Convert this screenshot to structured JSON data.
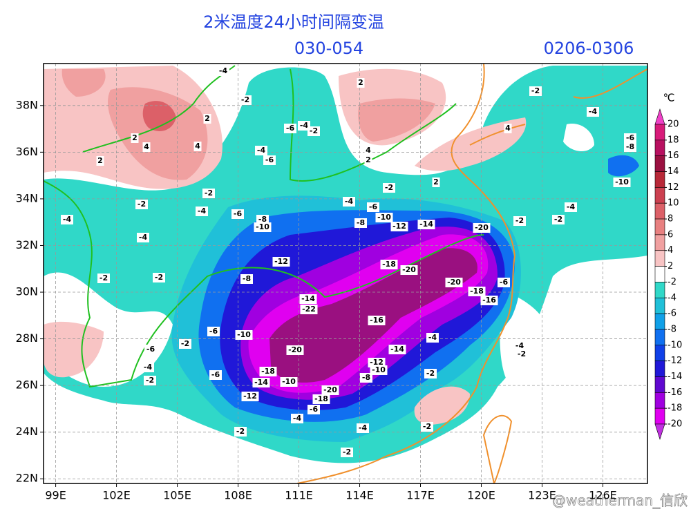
{
  "map": {
    "title": "2米温度24小时间隔变温",
    "subtitle": "030-054",
    "date_range": "0206-0306",
    "unit": "℃",
    "watermark": "@weatherman_信欣",
    "xlim": [
      98.4,
      128.2
    ],
    "ylim": [
      21.8,
      39.8
    ],
    "xticks": [
      {
        "value": 99,
        "label": "99E"
      },
      {
        "value": 102,
        "label": "102E"
      },
      {
        "value": 105,
        "label": "105E"
      },
      {
        "value": 108,
        "label": "108E"
      },
      {
        "value": 111,
        "label": "111E"
      },
      {
        "value": 114,
        "label": "114E"
      },
      {
        "value": 117,
        "label": "117E"
      },
      {
        "value": 120,
        "label": "120E"
      },
      {
        "value": 123,
        "label": "123E"
      },
      {
        "value": 126,
        "label": "126E"
      }
    ],
    "yticks": [
      {
        "value": 22,
        "label": "22N"
      },
      {
        "value": 24,
        "label": "24N"
      },
      {
        "value": 26,
        "label": "26N"
      },
      {
        "value": 28,
        "label": "28N"
      },
      {
        "value": 30,
        "label": "30N"
      },
      {
        "value": 32,
        "label": "32N"
      },
      {
        "value": 34,
        "label": "34N"
      },
      {
        "value": 36,
        "label": "36N"
      },
      {
        "value": 38,
        "label": "38N"
      }
    ],
    "grid": true,
    "colorbar": {
      "labels": [
        20,
        18,
        16,
        14,
        12,
        10,
        8,
        6,
        4,
        2,
        -2,
        -4,
        -6,
        -8,
        -10,
        -12,
        -14,
        -16,
        -18,
        -20
      ],
      "colors": [
        "#f040c8",
        "#d81b7a",
        "#b81060",
        "#9a1040",
        "#b82838",
        "#cc4050",
        "#dc6068",
        "#e88080",
        "#f0a0a0",
        "#f8c4c4",
        "#ffffff",
        "#30d8c8",
        "#20c0d8",
        "#10a0e8",
        "#1070f0",
        "#1040e8",
        "#2018d8",
        "#6008d0",
        "#a000e0",
        "#e000f0",
        "#c030e0"
      ]
    },
    "contour_labels": [
      "-4",
      "-2",
      "2",
      "-2",
      "2",
      "-6",
      "-4",
      "-2",
      "4",
      "-4",
      "2",
      "4",
      "4",
      "-6",
      "-8",
      "2",
      "-4",
      "-6",
      "4",
      "2",
      "2",
      "-2",
      "-2",
      "-10",
      "-4",
      "-6",
      "-2",
      "-4",
      "-6",
      "-4",
      "-4",
      "-2",
      "-2",
      "-8",
      "-10",
      "-8",
      "-10",
      "-12",
      "-14",
      "-20",
      "-4",
      "-12",
      "-18",
      "-20",
      "-2",
      "-2",
      "-8",
      "-20",
      "-6",
      "-18",
      "-16",
      "-14",
      "-22",
      "-16",
      "-6",
      "-10",
      "-4",
      "-2",
      "-6",
      "-20",
      "-14",
      "-4",
      "-2",
      "-4",
      "-12",
      "-10",
      "-2",
      "-6",
      "-18",
      "-14",
      "-10",
      "-8",
      "-2",
      "-20",
      "-12",
      "-18",
      "-6",
      "-4",
      "-4",
      "-2",
      "-2",
      "-2"
    ]
  }
}
